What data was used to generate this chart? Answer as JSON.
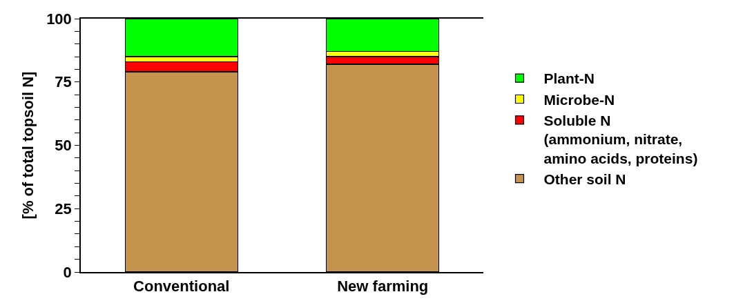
{
  "chart_data": {
    "type": "bar",
    "stacked": true,
    "ylabel": "[% of total topsoil N]",
    "categories": [
      "Conventional",
      "New farming"
    ],
    "series": [
      {
        "name": "Other soil N",
        "color": "#c4944f",
        "values": [
          79,
          82
        ]
      },
      {
        "name": "Soluble N\n(ammonium, nitrate,\namino acids, proteins)",
        "color": "#ff0000",
        "values": [
          4,
          3
        ]
      },
      {
        "name": "Microbe-N",
        "color": "#ffff00",
        "values": [
          2,
          2
        ]
      },
      {
        "name": "Plant-N",
        "color": "#00ff00",
        "values": [
          15,
          13
        ]
      }
    ],
    "ylim": [
      0,
      100
    ],
    "yticks": [
      0,
      {
        "value": 5,
        "label": null
      },
      {
        "value": 10,
        "label": null
      },
      {
        "value": 15,
        "label": null
      },
      {
        "value": 20,
        "label": null
      },
      25,
      {
        "value": 30,
        "label": null
      },
      {
        "value": 35,
        "label": null
      },
      {
        "value": 40,
        "label": null
      },
      {
        "value": 45,
        "label": null
      },
      50,
      {
        "value": 55,
        "label": null
      },
      {
        "value": 60,
        "label": null
      },
      {
        "value": 65,
        "label": null
      },
      {
        "value": 70,
        "label": null
      },
      75,
      {
        "value": 80,
        "label": null
      },
      {
        "value": 85,
        "label": null
      },
      {
        "value": 90,
        "label": null
      },
      {
        "value": 95,
        "label": null
      },
      100
    ],
    "grid": false,
    "legend": "right"
  }
}
